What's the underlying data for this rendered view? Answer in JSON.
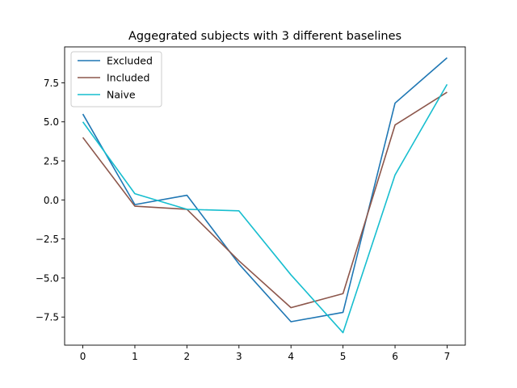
{
  "chart_data": {
    "type": "line",
    "title": "Aggegrated subjects with 3 different baselines",
    "xlabel": "",
    "ylabel": "",
    "x": [
      0,
      1,
      2,
      3,
      4,
      5,
      6,
      7
    ],
    "xlim": [
      -0.35,
      7.35
    ],
    "ylim": [
      -9.3,
      9.8
    ],
    "xticks": [
      0,
      1,
      2,
      3,
      4,
      5,
      6,
      7
    ],
    "yticks": [
      -7.5,
      -5.0,
      -2.5,
      0.0,
      2.5,
      5.0,
      7.5
    ],
    "xtick_labels": [
      "0",
      "1",
      "2",
      "3",
      "4",
      "5",
      "6",
      "7"
    ],
    "ytick_labels": [
      "−7.5",
      "−5.0",
      "−2.5",
      "0.0",
      "2.5",
      "5.0",
      "7.5"
    ],
    "grid": false,
    "legend_position": "top-left",
    "series": [
      {
        "name": "Excluded",
        "color": "#1f77b4",
        "values": [
          5.5,
          -0.3,
          0.3,
          -4.1,
          -7.8,
          -7.2,
          6.2,
          9.1
        ]
      },
      {
        "name": "Included",
        "color": "#8c564b",
        "values": [
          4.0,
          -0.4,
          -0.6,
          -3.9,
          -6.9,
          -6.0,
          4.8,
          6.9
        ]
      },
      {
        "name": "Naive",
        "color": "#17becf",
        "values": [
          5.0,
          0.4,
          -0.6,
          -0.7,
          -4.8,
          -8.5,
          1.6,
          7.4
        ]
      }
    ]
  }
}
